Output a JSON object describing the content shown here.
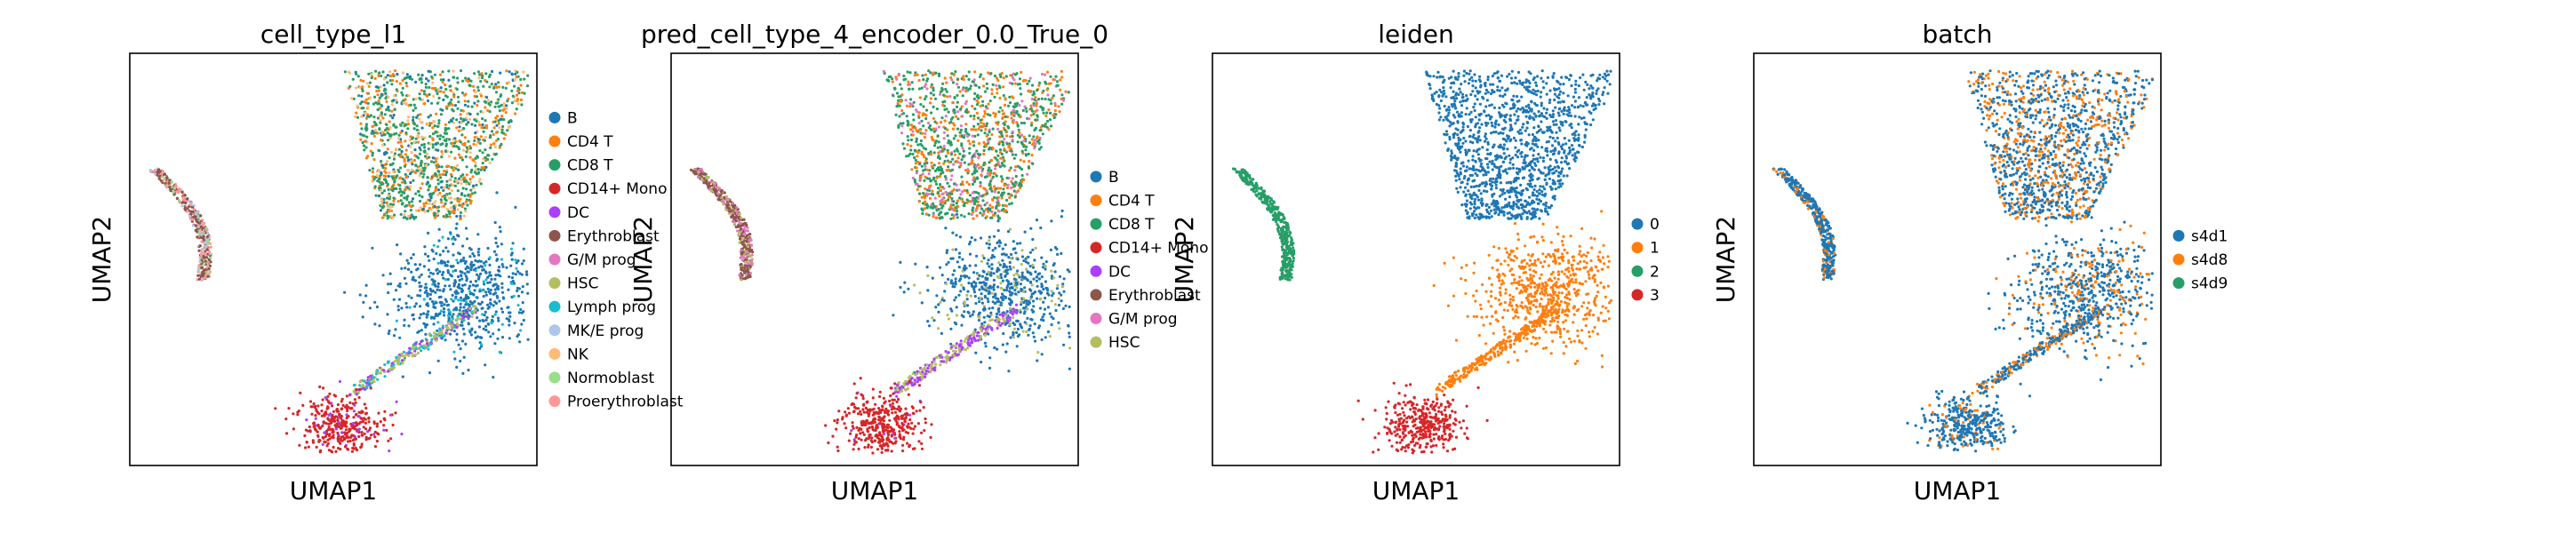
{
  "chart_data": [
    {
      "type": "scatter",
      "title": "cell_type_l1",
      "xlabel": "UMAP1",
      "ylabel": "UMAP2",
      "legend": "right",
      "grid": false,
      "legend_entries": [
        {
          "name": "B",
          "color": "#1f77b4"
        },
        {
          "name": "CD4 T",
          "color": "#ff7f0e"
        },
        {
          "name": "CD8 T",
          "color": "#279e68"
        },
        {
          "name": "CD14+ Mono",
          "color": "#d62728"
        },
        {
          "name": "DC",
          "color": "#aa40fc"
        },
        {
          "name": "Erythroblast",
          "color": "#8c564b"
        },
        {
          "name": "G/M prog",
          "color": "#e377c2"
        },
        {
          "name": "HSC",
          "color": "#b5bd61"
        },
        {
          "name": "Lymph prog",
          "color": "#17becf"
        },
        {
          "name": "MK/E prog",
          "color": "#aec7e8"
        },
        {
          "name": "NK",
          "color": "#ffbb78"
        },
        {
          "name": "Normoblast",
          "color": "#98df8a"
        },
        {
          "name": "Proerythroblast",
          "color": "#ff9896"
        }
      ]
    },
    {
      "type": "scatter",
      "title": "pred_cell_type_4_encoder_0.0_True_0",
      "xlabel": "UMAP1",
      "ylabel": "UMAP2",
      "legend": "right",
      "grid": false,
      "legend_entries": [
        {
          "name": "B",
          "color": "#1f77b4"
        },
        {
          "name": "CD4 T",
          "color": "#ff7f0e"
        },
        {
          "name": "CD8 T",
          "color": "#279e68"
        },
        {
          "name": "CD14+ Mono",
          "color": "#d62728"
        },
        {
          "name": "DC",
          "color": "#aa40fc"
        },
        {
          "name": "Erythroblast",
          "color": "#8c564b"
        },
        {
          "name": "G/M prog",
          "color": "#e377c2"
        },
        {
          "name": "HSC",
          "color": "#b5bd61"
        }
      ]
    },
    {
      "type": "scatter",
      "title": "leiden",
      "xlabel": "UMAP1",
      "ylabel": "UMAP2",
      "legend": "right",
      "grid": false,
      "legend_entries": [
        {
          "name": "0",
          "color": "#1f77b4"
        },
        {
          "name": "1",
          "color": "#ff7f0e"
        },
        {
          "name": "2",
          "color": "#279e68"
        },
        {
          "name": "3",
          "color": "#d62728"
        }
      ]
    },
    {
      "type": "scatter",
      "title": "batch",
      "xlabel": "UMAP1",
      "ylabel": "UMAP2",
      "legend": "right",
      "grid": false,
      "legend_entries": [
        {
          "name": "s4d1",
          "color": "#1f77b4"
        },
        {
          "name": "s4d8",
          "color": "#ff7f0e"
        },
        {
          "name": "s4d9",
          "color": "#279e68"
        }
      ]
    }
  ]
}
